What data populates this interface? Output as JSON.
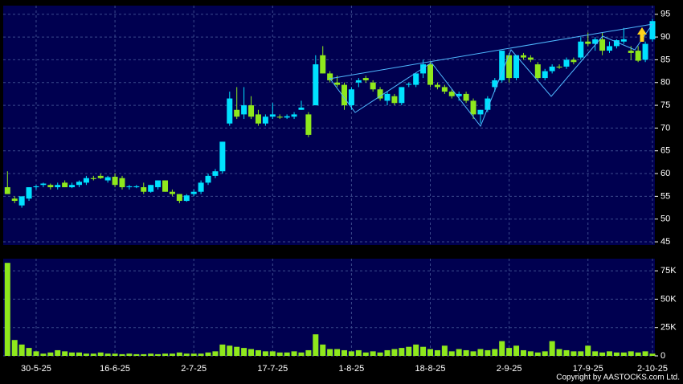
{
  "chart_data": [
    {
      "type": "candlestick",
      "open": [
        57,
        54.5,
        53,
        54.5,
        57,
        57.5,
        57.5,
        57,
        58,
        57,
        57.5,
        58,
        59,
        59.5,
        58.5,
        59.3,
        59,
        57,
        57,
        57,
        56,
        57,
        58.5,
        56,
        55.5,
        54,
        55.5,
        56,
        58,
        59.5,
        60.5,
        71,
        74,
        73,
        75,
        73,
        71,
        72.5,
        72.5,
        72.3,
        72.5,
        74,
        73,
        75,
        86,
        82,
        80,
        79.5,
        75,
        80,
        81,
        80,
        78.5,
        76,
        77,
        75.5,
        79.5,
        79.5,
        82,
        84,
        79.5,
        79,
        78,
        77,
        77.5,
        76,
        73,
        74,
        79,
        80.5,
        86,
        81,
        86,
        85.5,
        84,
        81,
        82.5,
        83.5,
        83.5,
        85,
        85.5,
        89,
        88.5,
        89.5,
        87,
        88,
        89,
        87,
        87,
        85,
        89.5
      ],
      "high": [
        60.5,
        55,
        55,
        57,
        57.5,
        58,
        57.8,
        58,
        58.5,
        58,
        58.5,
        59.5,
        59.5,
        60,
        59.5,
        60,
        59.5,
        57.5,
        57.5,
        58,
        57.5,
        58.5,
        58.5,
        56.5,
        55.5,
        55.5,
        56.5,
        58.5,
        60,
        61,
        67,
        78,
        79,
        79,
        77,
        74,
        73,
        75.5,
        73,
        73,
        73.5,
        76,
        73.5,
        86,
        88,
        82.5,
        81.5,
        80,
        79,
        81,
        81.5,
        80.5,
        79,
        78,
        77.5,
        79,
        80,
        82,
        85,
        84.5,
        80,
        79.5,
        78.5,
        78,
        78,
        76.5,
        74,
        77,
        81,
        87,
        86.5,
        86,
        86.5,
        86,
        84.5,
        83,
        84,
        84,
        85.5,
        85.5,
        90,
        91,
        90,
        91,
        89,
        89.5,
        92,
        88,
        88,
        89,
        94
      ],
      "low": [
        55.5,
        53.5,
        52.5,
        54,
        56.5,
        57,
        56.5,
        56.5,
        57,
        56.8,
        57,
        57.5,
        58.5,
        58.8,
        58,
        57,
        56.5,
        56.5,
        56.8,
        55.5,
        55.8,
        56.5,
        56,
        55,
        53.5,
        53.8,
        55,
        55.5,
        57.5,
        59,
        60,
        70.5,
        72,
        72,
        72,
        70.5,
        70.5,
        72,
        72,
        72,
        72,
        74,
        68,
        75,
        82,
        80,
        79,
        74,
        74,
        79,
        80,
        78,
        76,
        75,
        75,
        75,
        79,
        79,
        81,
        79,
        78.5,
        77.5,
        76.5,
        76,
        75.5,
        72,
        71,
        73.5,
        78,
        80,
        80,
        80.5,
        85,
        84.5,
        80.5,
        80.5,
        82,
        83,
        83,
        84,
        85,
        88,
        87,
        86,
        86.5,
        87.5,
        88.5,
        85,
        84.5,
        84.5,
        89
      ],
      "close": [
        55.5,
        54,
        55,
        57,
        57.2,
        57.8,
        57,
        57.5,
        57,
        57.5,
        58.2,
        59,
        58.8,
        59,
        59.2,
        57.5,
        57,
        57.2,
        57.2,
        56,
        57.5,
        58.5,
        56,
        55.5,
        54,
        55.2,
        56,
        58,
        59.5,
        60.5,
        67,
        76.5,
        72.5,
        75,
        72.5,
        71,
        72.5,
        73,
        72.3,
        72.6,
        73,
        74.5,
        68.5,
        84,
        82,
        80.5,
        79.5,
        75,
        78.5,
        80.5,
        80.5,
        78.5,
        76.5,
        77.5,
        75.5,
        79,
        79.7,
        82,
        84,
        79.5,
        79,
        78,
        77,
        77.5,
        76,
        73,
        74,
        76.5,
        80.5,
        87,
        81,
        86,
        85.5,
        85,
        81,
        82.5,
        83.5,
        83.3,
        85,
        84.5,
        89,
        88.5,
        89.5,
        87,
        88,
        89.3,
        89.5,
        86.5,
        84.8,
        88.5,
        93.5
      ],
      "up_color": "#00e1ff",
      "down_color": "#8fe81c",
      "ylim": [
        44.3,
        96.9
      ],
      "yticks": [
        45,
        50,
        55,
        60,
        65,
        70,
        75,
        80,
        85,
        90,
        95
      ],
      "grid": true
    },
    {
      "type": "bar",
      "categories": [
        null,
        null,
        null,
        null,
        "30-5-25",
        null,
        null,
        null,
        null,
        null,
        null,
        null,
        null,
        null,
        null,
        "16-6-25",
        null,
        null,
        null,
        null,
        null,
        null,
        null,
        null,
        null,
        null,
        "2-7-25",
        null,
        null,
        null,
        null,
        null,
        null,
        null,
        null,
        null,
        null,
        "17-7-25",
        null,
        null,
        null,
        null,
        null,
        null,
        null,
        null,
        null,
        null,
        "1-8-25",
        null,
        null,
        null,
        null,
        null,
        null,
        null,
        null,
        null,
        null,
        "18-8-25",
        null,
        null,
        null,
        null,
        null,
        null,
        null,
        null,
        null,
        null,
        "2-9-25",
        null,
        null,
        null,
        null,
        null,
        null,
        null,
        null,
        null,
        null,
        "17-9-25",
        null,
        null,
        null,
        null,
        null,
        null,
        null,
        null,
        "2-10-25"
      ],
      "values": [
        82000,
        14000,
        10000,
        7000,
        4000,
        2000,
        3000,
        5000,
        4000,
        3000,
        3000,
        2000,
        2000,
        3000,
        2000,
        2000,
        1500,
        2000,
        1500,
        1500,
        2000,
        1500,
        2000,
        2000,
        3000,
        2000,
        2000,
        2000,
        3000,
        4000,
        10000,
        9000,
        8000,
        7000,
        6000,
        5000,
        4000,
        4000,
        3000,
        3000,
        4000,
        3000,
        5000,
        19000,
        10000,
        6000,
        6000,
        5000,
        4000,
        5000,
        3000,
        4000,
        3000,
        5000,
        6000,
        7000,
        8000,
        10000,
        8000,
        6000,
        5000,
        9000,
        4000,
        6000,
        5000,
        4000,
        6000,
        5000,
        6000,
        13000,
        7000,
        9000,
        5000,
        4000,
        3000,
        4000,
        13000,
        6000,
        5000,
        4000,
        4000,
        9000,
        4000,
        3000,
        4000,
        3000,
        3000,
        4000,
        3000,
        4000,
        2000
      ],
      "color": "#8fe81c",
      "ylim": [
        0,
        85700
      ],
      "yticks": [
        0,
        {
          "value": 25000,
          "label": "25K"
        },
        {
          "value": 50000,
          "label": "50K"
        },
        {
          "value": 75000,
          "label": "75K"
        }
      ],
      "grid": true
    }
  ],
  "copyright": "Copyright by AASTOCKS.com Ltd."
}
